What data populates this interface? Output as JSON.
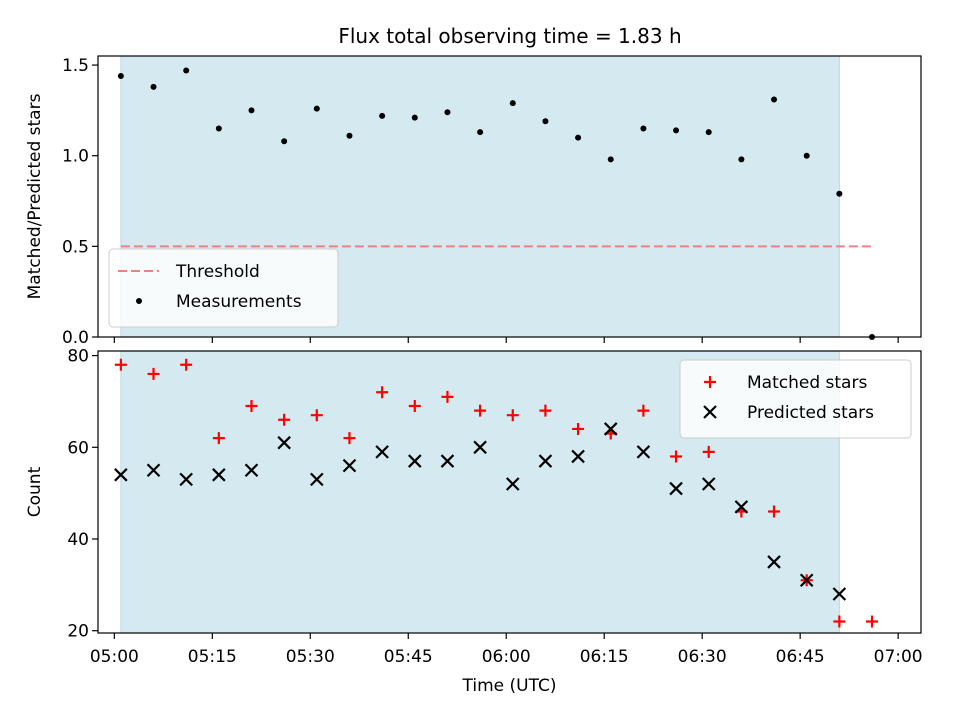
{
  "title": "Flux total observing time = 1.83 h",
  "chart_data": [
    {
      "type": "scatter",
      "ylabel": "Matched/Predicted stars",
      "xlim": [
        "04:57:30",
        "07:03:30"
      ],
      "ylim": [
        0,
        1.55
      ],
      "yticks": [
        0.0,
        0.5,
        1.0,
        1.5
      ],
      "ytick_labels": [
        "0.0",
        "0.5",
        "1.0",
        "1.5"
      ],
      "shaded_interval": {
        "from": "05:01",
        "to": "06:51",
        "color": "#d4eaf0"
      },
      "threshold": {
        "label": "Threshold",
        "value": 0.5,
        "from": "05:01",
        "to": "06:56",
        "color": "#f08080"
      },
      "legend_location": "lower-left",
      "series": [
        {
          "name": "Measurements",
          "marker": "dot",
          "color": "#000000",
          "points": [
            {
              "x": "05:01",
              "y": 1.44
            },
            {
              "x": "05:06",
              "y": 1.38
            },
            {
              "x": "05:11",
              "y": 1.47
            },
            {
              "x": "05:16",
              "y": 1.15
            },
            {
              "x": "05:21",
              "y": 1.25
            },
            {
              "x": "05:26",
              "y": 1.08
            },
            {
              "x": "05:31",
              "y": 1.26
            },
            {
              "x": "05:36",
              "y": 1.11
            },
            {
              "x": "05:41",
              "y": 1.22
            },
            {
              "x": "05:46",
              "y": 1.21
            },
            {
              "x": "05:51",
              "y": 1.24
            },
            {
              "x": "05:56",
              "y": 1.13
            },
            {
              "x": "06:01",
              "y": 1.29
            },
            {
              "x": "06:06",
              "y": 1.19
            },
            {
              "x": "06:11",
              "y": 1.1
            },
            {
              "x": "06:16",
              "y": 0.98
            },
            {
              "x": "06:21",
              "y": 1.15
            },
            {
              "x": "06:26",
              "y": 1.14
            },
            {
              "x": "06:31",
              "y": 1.13
            },
            {
              "x": "06:36",
              "y": 0.98
            },
            {
              "x": "06:41",
              "y": 1.31
            },
            {
              "x": "06:46",
              "y": 1.0
            },
            {
              "x": "06:51",
              "y": 0.79
            },
            {
              "x": "06:56",
              "y": 0.0
            }
          ]
        }
      ]
    },
    {
      "type": "scatter",
      "xlabel": "Time (UTC)",
      "ylabel": "Count",
      "xlim": [
        "04:57:30",
        "07:03:30"
      ],
      "ylim": [
        19.5,
        81
      ],
      "yticks": [
        20,
        40,
        60,
        80
      ],
      "ytick_labels": [
        "20",
        "40",
        "60",
        "80"
      ],
      "xticks": [
        "05:00",
        "05:15",
        "05:30",
        "05:45",
        "06:00",
        "06:15",
        "06:30",
        "06:45",
        "07:00"
      ],
      "xtick_labels": [
        "05:00",
        "05:15",
        "05:30",
        "05:45",
        "06:00",
        "06:15",
        "06:30",
        "06:45",
        "07:00"
      ],
      "shaded_interval": {
        "from": "05:01",
        "to": "06:51",
        "color": "#d4eaf0"
      },
      "legend_location": "upper-right",
      "series": [
        {
          "name": "Matched stars",
          "marker": "plus",
          "color": "#ff0000",
          "points": [
            {
              "x": "05:01",
              "y": 78
            },
            {
              "x": "05:06",
              "y": 76
            },
            {
              "x": "05:11",
              "y": 78
            },
            {
              "x": "05:16",
              "y": 62
            },
            {
              "x": "05:21",
              "y": 69
            },
            {
              "x": "05:26",
              "y": 66
            },
            {
              "x": "05:31",
              "y": 67
            },
            {
              "x": "05:36",
              "y": 62
            },
            {
              "x": "05:41",
              "y": 72
            },
            {
              "x": "05:46",
              "y": 69
            },
            {
              "x": "05:51",
              "y": 71
            },
            {
              "x": "05:56",
              "y": 68
            },
            {
              "x": "06:01",
              "y": 67
            },
            {
              "x": "06:06",
              "y": 68
            },
            {
              "x": "06:11",
              "y": 64
            },
            {
              "x": "06:16",
              "y": 63
            },
            {
              "x": "06:21",
              "y": 68
            },
            {
              "x": "06:26",
              "y": 58
            },
            {
              "x": "06:31",
              "y": 59
            },
            {
              "x": "06:36",
              "y": 46
            },
            {
              "x": "06:41",
              "y": 46
            },
            {
              "x": "06:46",
              "y": 31
            },
            {
              "x": "06:51",
              "y": 22
            },
            {
              "x": "06:56",
              "y": 22
            }
          ]
        },
        {
          "name": "Predicted stars",
          "marker": "x",
          "color": "#000000",
          "points": [
            {
              "x": "05:01",
              "y": 54
            },
            {
              "x": "05:06",
              "y": 55
            },
            {
              "x": "05:11",
              "y": 53
            },
            {
              "x": "05:16",
              "y": 54
            },
            {
              "x": "05:21",
              "y": 55
            },
            {
              "x": "05:26",
              "y": 61
            },
            {
              "x": "05:31",
              "y": 53
            },
            {
              "x": "05:36",
              "y": 56
            },
            {
              "x": "05:41",
              "y": 59
            },
            {
              "x": "05:46",
              "y": 57
            },
            {
              "x": "05:51",
              "y": 57
            },
            {
              "x": "05:56",
              "y": 60
            },
            {
              "x": "06:01",
              "y": 52
            },
            {
              "x": "06:06",
              "y": 57
            },
            {
              "x": "06:11",
              "y": 58
            },
            {
              "x": "06:16",
              "y": 64
            },
            {
              "x": "06:21",
              "y": 59
            },
            {
              "x": "06:26",
              "y": 51
            },
            {
              "x": "06:31",
              "y": 52
            },
            {
              "x": "06:36",
              "y": 47
            },
            {
              "x": "06:41",
              "y": 35
            },
            {
              "x": "06:46",
              "y": 31
            },
            {
              "x": "06:51",
              "y": 28
            }
          ]
        }
      ]
    }
  ]
}
